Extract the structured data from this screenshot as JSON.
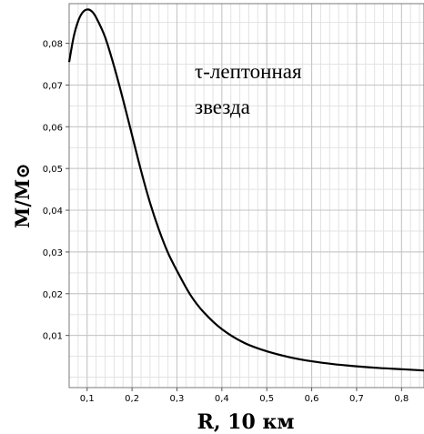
{
  "chart_data": {
    "type": "line",
    "title": "",
    "xlabel": "R, 10 км",
    "ylabel": "M/M⊙",
    "annotation_lines": [
      "τ-лептонная",
      "звезда"
    ],
    "xlim": [
      0.06,
      0.85
    ],
    "ylim": [
      -0.0025,
      0.0895
    ],
    "x_ticks": [
      0.1,
      0.2,
      0.3,
      0.4,
      0.5,
      0.6,
      0.7,
      0.8
    ],
    "x_tick_labels": [
      "0,1",
      "0,2",
      "0,3",
      "0,4",
      "0,5",
      "0,6",
      "0,7",
      "0,8"
    ],
    "y_ticks": [
      0.01,
      0.02,
      0.03,
      0.04,
      0.05,
      0.06,
      0.07,
      0.08
    ],
    "y_tick_labels": [
      "0,01",
      "0,02",
      "0,03",
      "0,04",
      "0,05",
      "0,06",
      "0,07",
      "0,08"
    ],
    "grid": true,
    "series": [
      {
        "color": "#000000",
        "x": [
          0.06,
          0.07,
          0.08,
          0.09,
          0.1,
          0.11,
          0.12,
          0.14,
          0.16,
          0.18,
          0.2,
          0.22,
          0.24,
          0.26,
          0.28,
          0.3,
          0.33,
          0.36,
          0.4,
          0.45,
          0.5,
          0.55,
          0.6,
          0.65,
          0.7,
          0.75,
          0.8,
          0.85
        ],
        "y": [
          0.0755,
          0.0815,
          0.0853,
          0.0874,
          0.0881,
          0.0877,
          0.0862,
          0.0815,
          0.0745,
          0.0665,
          0.058,
          0.0495,
          0.0418,
          0.0353,
          0.0298,
          0.0255,
          0.0197,
          0.0155,
          0.0115,
          0.0082,
          0.0062,
          0.0048,
          0.0038,
          0.0031,
          0.0026,
          0.0022,
          0.0019,
          0.0016
        ]
      }
    ]
  }
}
